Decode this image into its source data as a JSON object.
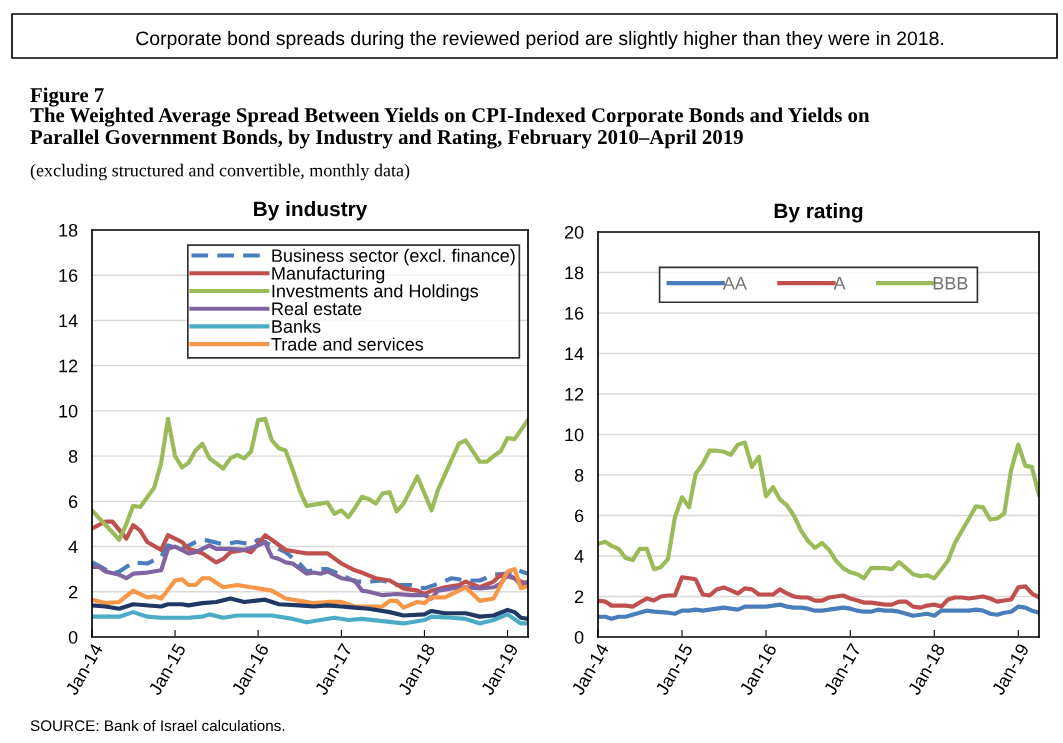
{
  "chart_data": [
    {
      "type": "line",
      "title": "By industry",
      "annotations": [
        "Corporate bond spreads during the reviewed period are slightly higher than they were in 2018.",
        "Figure 7",
        "The Weighted Average Spread Between Yields on CPI-Indexed Corporate Bonds and Yields on\nParallel Government Bonds, by Industry and Rating, February 2010–April 2019",
        "(excluding structured and convertible, monthly data)",
        "SOURCE: Bank of Israel calculations."
      ],
      "xlim": [
        "2014-01",
        "2019-04"
      ],
      "xticks": [
        {
          "value": "2014-01",
          "label": "Jan-14"
        },
        {
          "value": "2015-01",
          "label": "Jan-15"
        },
        {
          "value": "2016-01",
          "label": "Jan-16"
        },
        {
          "value": "2017-01",
          "label": "Jan-17"
        },
        {
          "value": "2018-01",
          "label": "Jan-18"
        },
        {
          "value": "2019-01",
          "label": "Jan-19"
        }
      ],
      "ylim": [
        0,
        18
      ],
      "yticks": [
        0,
        2,
        4,
        6,
        8,
        10,
        12,
        14,
        16,
        18
      ],
      "grid": "y",
      "legend": "top",
      "marker": "none",
      "series": [
        {
          "name": "Business sector (excl. finance)",
          "color": "#4a7ebb",
          "line_style": "dashed",
          "x": [
            "2014-01",
            "2014-02",
            "2014-04",
            "2014-05",
            "2014-07",
            "2014-09",
            "2014-11",
            "2014-12",
            "2015-02",
            "2015-04",
            "2015-05",
            "2015-06",
            "2015-08",
            "2015-10",
            "2015-12",
            "2016-01",
            "2016-03",
            "2016-05",
            "2016-07",
            "2016-08",
            "2016-10",
            "2016-11",
            "2017-01",
            "2017-03",
            "2017-05",
            "2017-07",
            "2017-09",
            "2017-11",
            "2018-01",
            "2018-03",
            "2018-05",
            "2018-07",
            "2018-09",
            "2018-11",
            "2019-01",
            "2019-02",
            "2019-04"
          ],
          "values": [
            3.3,
            3.15,
            2.8,
            2.9,
            3.3,
            3.25,
            3.55,
            4.05,
            3.9,
            4.2,
            4.3,
            4.25,
            4.1,
            4.2,
            4.1,
            4.3,
            4.05,
            3.75,
            3.25,
            2.9,
            3.0,
            3.0,
            2.75,
            2.45,
            2.45,
            2.5,
            2.3,
            2.3,
            2.15,
            2.35,
            2.6,
            2.5,
            2.5,
            2.75,
            2.8,
            3.0,
            2.8
          ]
        },
        {
          "name": "Manufacturing",
          "color": "#c0504d",
          "x": [
            "2014-01",
            "2014-03",
            "2014-04",
            "2014-06",
            "2014-07",
            "2014-08",
            "2014-09",
            "2014-11",
            "2014-12",
            "2015-01",
            "2015-02",
            "2015-03",
            "2015-05",
            "2015-07",
            "2015-08",
            "2015-09",
            "2015-11",
            "2015-12",
            "2016-02",
            "2016-03",
            "2016-05",
            "2016-07",
            "2016-08",
            "2016-09",
            "2016-11",
            "2017-01",
            "2017-03",
            "2017-04",
            "2017-06",
            "2017-08",
            "2017-10",
            "2017-12",
            "2018-01",
            "2018-02",
            "2018-04",
            "2018-06",
            "2018-07",
            "2018-09",
            "2018-11",
            "2018-12",
            "2019-02",
            "2019-03",
            "2019-04"
          ],
          "values": [
            4.8,
            5.1,
            5.1,
            4.35,
            4.95,
            4.7,
            4.2,
            3.85,
            4.5,
            4.35,
            4.2,
            3.9,
            3.7,
            3.3,
            3.45,
            3.75,
            3.85,
            3.75,
            4.5,
            4.3,
            3.85,
            3.75,
            3.7,
            3.7,
            3.7,
            3.25,
            2.95,
            2.85,
            2.6,
            2.5,
            2.15,
            2.05,
            1.9,
            2.05,
            2.2,
            2.3,
            2.45,
            2.2,
            2.45,
            2.75,
            2.6,
            2.45,
            2.35
          ]
        },
        {
          "name": "Investments and Holdings",
          "color": "#9bbb59",
          "x": [
            "2014-01",
            "2014-05",
            "2014-06",
            "2014-07",
            "2014-08",
            "2014-10",
            "2014-11",
            "2014-12",
            "2015-01",
            "2015-02",
            "2015-03",
            "2015-04",
            "2015-05",
            "2015-06",
            "2015-08",
            "2015-09",
            "2015-10",
            "2015-11",
            "2015-12",
            "2016-01",
            "2016-02",
            "2016-03",
            "2016-04",
            "2016-05",
            "2016-06",
            "2016-07",
            "2016-08",
            "2016-10",
            "2016-11",
            "2016-12",
            "2017-01",
            "2017-02",
            "2017-03",
            "2017-04",
            "2017-05",
            "2017-06",
            "2017-07",
            "2017-08",
            "2017-09",
            "2017-10",
            "2017-12",
            "2018-02",
            "2018-03",
            "2018-06",
            "2018-07",
            "2018-09",
            "2018-10",
            "2018-11",
            "2018-12",
            "2019-01",
            "2019-02",
            "2019-04"
          ],
          "values": [
            5.6,
            4.3,
            5.0,
            5.8,
            5.75,
            6.6,
            7.7,
            9.65,
            8.0,
            7.5,
            7.7,
            8.25,
            8.55,
            7.9,
            7.45,
            7.9,
            8.05,
            7.9,
            8.2,
            9.6,
            9.65,
            8.7,
            8.35,
            8.25,
            7.4,
            6.5,
            5.8,
            5.9,
            5.95,
            5.45,
            5.6,
            5.3,
            5.7,
            6.2,
            6.1,
            5.9,
            6.35,
            6.4,
            5.55,
            5.9,
            7.1,
            5.6,
            6.5,
            8.55,
            8.7,
            7.75,
            7.75,
            8.0,
            8.2,
            8.8,
            8.75,
            9.6
          ]
        },
        {
          "name": "Real estate",
          "color": "#8064a2",
          "x": [
            "2014-01",
            "2014-02",
            "2014-03",
            "2014-05",
            "2014-06",
            "2014-07",
            "2014-09",
            "2014-11",
            "2014-12",
            "2015-01",
            "2015-03",
            "2015-04",
            "2015-05",
            "2015-06",
            "2015-07",
            "2015-09",
            "2015-11",
            "2016-01",
            "2016-02",
            "2016-03",
            "2016-04",
            "2016-05",
            "2016-06",
            "2016-08",
            "2016-09",
            "2016-10",
            "2016-11",
            "2017-01",
            "2017-03",
            "2017-04",
            "2017-05",
            "2017-07",
            "2017-09",
            "2017-11",
            "2018-01",
            "2018-02",
            "2018-03",
            "2018-05",
            "2018-07",
            "2018-09",
            "2018-11",
            "2018-12",
            "2019-01",
            "2019-02",
            "2019-03",
            "2019-04"
          ],
          "values": [
            3.1,
            3.1,
            2.9,
            2.75,
            2.6,
            2.8,
            2.85,
            2.95,
            3.9,
            4.0,
            3.7,
            3.75,
            3.9,
            4.05,
            3.9,
            3.9,
            3.85,
            4.05,
            4.2,
            3.55,
            3.45,
            3.3,
            3.25,
            2.8,
            2.85,
            2.8,
            2.9,
            2.6,
            2.5,
            2.05,
            2.0,
            1.85,
            1.9,
            1.85,
            1.85,
            1.7,
            2.05,
            2.15,
            2.2,
            2.15,
            2.2,
            2.35,
            2.75,
            2.6,
            2.3,
            2.45
          ]
        },
        {
          "name": "Banks",
          "color": "#4bacc6",
          "x": [
            "2014-01",
            "2014-03",
            "2014-05",
            "2014-07",
            "2014-09",
            "2014-11",
            "2015-01",
            "2015-03",
            "2015-05",
            "2015-06",
            "2015-08",
            "2015-10",
            "2016-01",
            "2016-03",
            "2016-06",
            "2016-08",
            "2016-10",
            "2016-12",
            "2017-02",
            "2017-04",
            "2017-07",
            "2017-10",
            "2018-01",
            "2018-02",
            "2018-05",
            "2018-07",
            "2018-09",
            "2018-11",
            "2019-01",
            "2019-03",
            "2019-04"
          ],
          "values": [
            0.9,
            0.9,
            0.9,
            1.1,
            0.9,
            0.85,
            0.85,
            0.85,
            0.9,
            1.0,
            0.85,
            0.95,
            0.95,
            0.95,
            0.8,
            0.65,
            0.75,
            0.85,
            0.75,
            0.8,
            0.7,
            0.6,
            0.75,
            0.9,
            0.85,
            0.8,
            0.6,
            0.75,
            1.0,
            0.6,
            0.6
          ]
        },
        {
          "name": "Trade and services",
          "color": "#f79646",
          "x": [
            "2014-01",
            "2014-03",
            "2014-05",
            "2014-07",
            "2014-08",
            "2014-09",
            "2014-10",
            "2014-11",
            "2015-01",
            "2015-02",
            "2015-03",
            "2015-04",
            "2015-05",
            "2015-06",
            "2015-08",
            "2015-10",
            "2015-12",
            "2016-01",
            "2016-03",
            "2016-05",
            "2016-07",
            "2016-09",
            "2016-11",
            "2017-01",
            "2017-03",
            "2017-05",
            "2017-07",
            "2017-08",
            "2017-09",
            "2017-10",
            "2017-12",
            "2018-01",
            "2018-02",
            "2018-04",
            "2018-05",
            "2018-07",
            "2018-09",
            "2018-11",
            "2019-01",
            "2019-02",
            "2019-03",
            "2019-04"
          ],
          "values": [
            1.65,
            1.5,
            1.55,
            2.05,
            1.9,
            1.75,
            1.8,
            1.7,
            2.5,
            2.55,
            2.3,
            2.3,
            2.6,
            2.6,
            2.2,
            2.3,
            2.2,
            2.15,
            2.05,
            1.7,
            1.6,
            1.5,
            1.55,
            1.55,
            1.35,
            1.35,
            1.35,
            1.6,
            1.6,
            1.3,
            1.55,
            1.5,
            1.75,
            1.75,
            1.9,
            2.2,
            1.6,
            1.7,
            2.9,
            3.0,
            2.15,
            2.25
          ]
        },
        {
          "color": "#1f3864",
          "x": [
            "2014-01",
            "2014-03",
            "2014-05",
            "2014-07",
            "2014-11",
            "2014-12",
            "2015-02",
            "2015-03",
            "2015-05",
            "2015-07",
            "2015-09",
            "2015-11",
            "2016-02",
            "2016-04",
            "2016-07",
            "2016-09",
            "2016-11",
            "2017-01",
            "2017-03",
            "2017-05",
            "2017-08",
            "2017-10",
            "2018-01",
            "2018-02",
            "2018-04",
            "2018-07",
            "2018-09",
            "2018-11",
            "2019-01",
            "2019-02",
            "2019-03",
            "2019-04"
          ],
          "values": [
            1.4,
            1.35,
            1.25,
            1.45,
            1.35,
            1.45,
            1.45,
            1.4,
            1.5,
            1.55,
            1.7,
            1.55,
            1.65,
            1.45,
            1.4,
            1.35,
            1.4,
            1.35,
            1.3,
            1.25,
            1.1,
            0.95,
            1.0,
            1.15,
            1.05,
            1.05,
            0.9,
            0.95,
            1.2,
            1.1,
            0.85,
            0.8
          ]
        }
      ]
    },
    {
      "type": "line",
      "title": "By rating",
      "xlim": [
        "2014-01",
        "2019-04"
      ],
      "xticks": [
        {
          "value": "2014-01",
          "label": "Jan-14"
        },
        {
          "value": "2015-01",
          "label": "Jan-15"
        },
        {
          "value": "2016-01",
          "label": "Jan-16"
        },
        {
          "value": "2017-01",
          "label": "Jan-17"
        },
        {
          "value": "2018-01",
          "label": "Jan-18"
        },
        {
          "value": "2019-01",
          "label": "Jan-19"
        }
      ],
      "ylim": [
        0,
        20
      ],
      "yticks": [
        0,
        2,
        4,
        6,
        8,
        10,
        12,
        14,
        16,
        18,
        20
      ],
      "grid": "y",
      "legend": "top",
      "marker": "none",
      "series": [
        {
          "name": "AA",
          "color": "#4a7ebb",
          "x": [
            "2014-01",
            "2014-02",
            "2014-03",
            "2014-04",
            "2014-05",
            "2014-07",
            "2014-08",
            "2014-09",
            "2014-11",
            "2014-12",
            "2015-01",
            "2015-02",
            "2015-03",
            "2015-04",
            "2015-05",
            "2015-06",
            "2015-07",
            "2015-08",
            "2015-09",
            "2015-10",
            "2015-11",
            "2016-01",
            "2016-02",
            "2016-03",
            "2016-04",
            "2016-05",
            "2016-06",
            "2016-07",
            "2016-08",
            "2016-09",
            "2016-10",
            "2016-12",
            "2017-01",
            "2017-02",
            "2017-03",
            "2017-04",
            "2017-05",
            "2017-06",
            "2017-07",
            "2017-08",
            "2017-09",
            "2017-10",
            "2017-11",
            "2017-12",
            "2018-01",
            "2018-02",
            "2018-03",
            "2018-05",
            "2018-06",
            "2018-07",
            "2018-08",
            "2018-09",
            "2018-10",
            "2018-11",
            "2018-12",
            "2019-01",
            "2019-02",
            "2019-03",
            "2019-04"
          ],
          "values": [
            1.0,
            1.0,
            0.9,
            1.0,
            1.0,
            1.2,
            1.3,
            1.25,
            1.2,
            1.15,
            1.3,
            1.3,
            1.35,
            1.3,
            1.35,
            1.4,
            1.45,
            1.4,
            1.35,
            1.5,
            1.5,
            1.5,
            1.55,
            1.6,
            1.5,
            1.45,
            1.45,
            1.4,
            1.3,
            1.3,
            1.35,
            1.45,
            1.4,
            1.3,
            1.25,
            1.25,
            1.35,
            1.3,
            1.3,
            1.25,
            1.15,
            1.05,
            1.1,
            1.15,
            1.05,
            1.3,
            1.3,
            1.3,
            1.3,
            1.35,
            1.3,
            1.15,
            1.1,
            1.2,
            1.25,
            1.5,
            1.45,
            1.3,
            1.2
          ]
        },
        {
          "name": "A",
          "color": "#c0504d",
          "x": [
            "2014-01",
            "2014-02",
            "2014-03",
            "2014-05",
            "2014-06",
            "2014-07",
            "2014-08",
            "2014-09",
            "2014-10",
            "2014-11",
            "2014-12",
            "2015-01",
            "2015-02",
            "2015-03",
            "2015-04",
            "2015-05",
            "2015-06",
            "2015-07",
            "2015-08",
            "2015-09",
            "2015-10",
            "2015-11",
            "2015-12",
            "2016-01",
            "2016-02",
            "2016-03",
            "2016-04",
            "2016-05",
            "2016-06",
            "2016-07",
            "2016-08",
            "2016-09",
            "2016-10",
            "2016-11",
            "2016-12",
            "2017-01",
            "2017-02",
            "2017-03",
            "2017-04",
            "2017-05",
            "2017-06",
            "2017-07",
            "2017-08",
            "2017-09",
            "2017-10",
            "2017-11",
            "2017-12",
            "2018-01",
            "2018-02",
            "2018-03",
            "2018-04",
            "2018-05",
            "2018-06",
            "2018-07",
            "2018-08",
            "2018-09",
            "2018-10",
            "2018-11",
            "2018-12",
            "2019-01",
            "2019-02",
            "2019-03",
            "2019-04"
          ],
          "values": [
            1.8,
            1.75,
            1.55,
            1.55,
            1.5,
            1.7,
            1.9,
            1.8,
            2.0,
            2.05,
            2.05,
            2.95,
            2.9,
            2.85,
            2.1,
            2.05,
            2.35,
            2.45,
            2.3,
            2.15,
            2.4,
            2.35,
            2.1,
            2.1,
            2.1,
            2.35,
            2.15,
            2.0,
            1.95,
            1.95,
            1.8,
            1.8,
            1.95,
            2.0,
            2.05,
            1.9,
            1.8,
            1.7,
            1.7,
            1.65,
            1.6,
            1.6,
            1.75,
            1.75,
            1.5,
            1.45,
            1.55,
            1.6,
            1.5,
            1.85,
            1.95,
            1.95,
            1.9,
            1.95,
            2.0,
            1.9,
            1.75,
            1.8,
            1.85,
            2.45,
            2.5,
            2.15,
            1.95
          ]
        },
        {
          "name": "BBB",
          "color": "#9bbb59",
          "x": [
            "2014-01",
            "2014-02",
            "2014-03",
            "2014-04",
            "2014-05",
            "2014-06",
            "2014-07",
            "2014-08",
            "2014-09",
            "2014-10",
            "2014-11",
            "2014-12",
            "2015-01",
            "2015-02",
            "2015-03",
            "2015-04",
            "2015-05",
            "2015-06",
            "2015-07",
            "2015-08",
            "2015-09",
            "2015-10",
            "2015-11",
            "2015-12",
            "2016-01",
            "2016-02",
            "2016-03",
            "2016-04",
            "2016-05",
            "2016-06",
            "2016-07",
            "2016-08",
            "2016-09",
            "2016-10",
            "2016-11",
            "2016-12",
            "2017-01",
            "2017-02",
            "2017-03",
            "2017-04",
            "2017-05",
            "2017-06",
            "2017-07",
            "2017-08",
            "2017-09",
            "2017-10",
            "2017-11",
            "2017-12",
            "2018-01",
            "2018-02",
            "2018-03",
            "2018-04",
            "2018-05",
            "2018-06",
            "2018-07",
            "2018-08",
            "2018-09",
            "2018-10",
            "2018-11",
            "2018-12",
            "2019-01",
            "2019-02",
            "2019-03",
            "2019-04"
          ],
          "values": [
            4.6,
            4.7,
            4.5,
            4.35,
            3.9,
            3.8,
            4.35,
            4.35,
            3.35,
            3.45,
            3.85,
            5.9,
            6.9,
            6.4,
            8.05,
            8.55,
            9.2,
            9.2,
            9.15,
            9.0,
            9.5,
            9.6,
            8.4,
            8.9,
            6.95,
            7.4,
            6.8,
            6.5,
            6.0,
            5.25,
            4.75,
            4.4,
            4.65,
            4.3,
            3.75,
            3.4,
            3.2,
            3.1,
            2.9,
            3.4,
            3.4,
            3.4,
            3.35,
            3.7,
            3.4,
            3.1,
            3.0,
            3.05,
            2.9,
            3.35,
            3.75,
            4.65,
            5.25,
            5.85,
            6.45,
            6.4,
            5.8,
            5.85,
            6.1,
            8.25,
            9.5,
            8.45,
            8.4,
            7.0
          ]
        }
      ]
    }
  ]
}
